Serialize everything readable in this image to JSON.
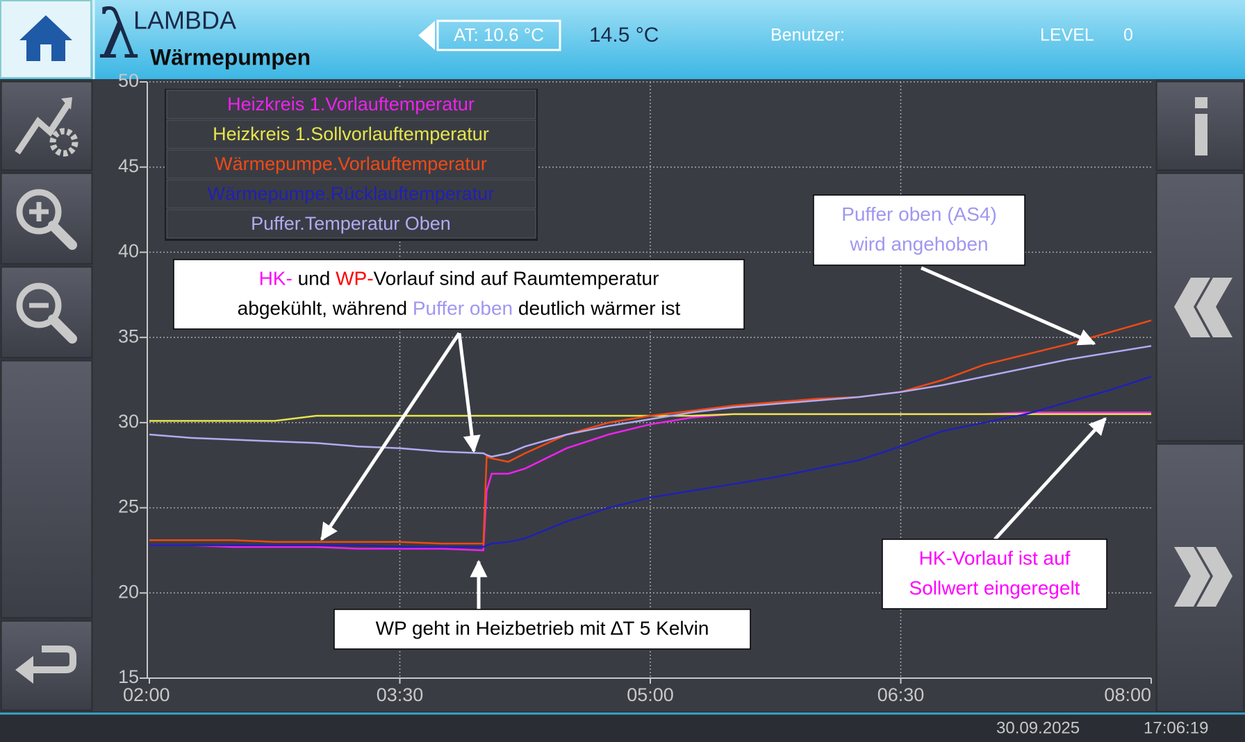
{
  "header": {
    "logo_symbol": "λ",
    "logo_title": "LAMBDA",
    "logo_subtitle": "Wärmepumpen",
    "outdoor_temp": "AT: 10.6 °C",
    "room_temp": "14.5 °C",
    "user_label": "Benutzer:",
    "level_label": "LEVEL",
    "level_value": "0"
  },
  "chart_data": {
    "type": "line",
    "legend": "upper left",
    "grid": true,
    "x": [
      2,
      2.25,
      2.5,
      2.75,
      3,
      3.25,
      3.5,
      3.75,
      4,
      4.02,
      4.05,
      4.15,
      4.25,
      4.5,
      4.75,
      5,
      5.25,
      5.5,
      5.75,
      6,
      6.25,
      6.5,
      6.75,
      7,
      7.25,
      7.5,
      7.75,
      8
    ],
    "xlim": [
      2,
      8
    ],
    "xticks": [
      {
        "value": 2,
        "label": "02:00"
      },
      {
        "value": 3.5,
        "label": "03:30"
      },
      {
        "value": 5,
        "label": "05:00"
      },
      {
        "value": 6.5,
        "label": "06:30"
      },
      {
        "value": 8,
        "label": "08:00"
      }
    ],
    "ylim": [
      15,
      50
    ],
    "yticks": [
      15,
      20,
      25,
      30,
      35,
      40,
      45,
      50
    ],
    "series": [
      {
        "name": "Heizkreis 1.Vorlauftemperatur",
        "color": "#ee22ee",
        "values": [
          22.8,
          22.8,
          22.7,
          22.7,
          22.7,
          22.6,
          22.6,
          22.6,
          22.5,
          26,
          27,
          27,
          27.3,
          28.5,
          29.3,
          29.9,
          30.3,
          30.5,
          30.5,
          30.5,
          30.5,
          30.5,
          30.5,
          30.5,
          30.6,
          30.6,
          30.6,
          30.6
        ]
      },
      {
        "name": "Heizkreis 1.Sollvorlauftemperatur",
        "color": "#e6e64a",
        "values": [
          30.1,
          30.1,
          30.1,
          30.1,
          30.4,
          30.4,
          30.4,
          30.4,
          30.4,
          30.4,
          30.4,
          30.4,
          30.4,
          30.4,
          30.4,
          30.4,
          30.4,
          30.5,
          30.5,
          30.5,
          30.5,
          30.5,
          30.5,
          30.5,
          30.5,
          30.5,
          30.5,
          30.5
        ]
      },
      {
        "name": "Wärmepumpe.Vorlauftemperatur",
        "color": "#f04a14",
        "values": [
          23.1,
          23.1,
          23.1,
          23,
          23,
          23,
          23,
          22.9,
          22.9,
          28,
          27.9,
          27.7,
          28.2,
          29.3,
          30,
          30.4,
          30.7,
          31,
          31.2,
          31.4,
          31.5,
          31.8,
          32.5,
          33.4,
          34,
          34.6,
          35.3,
          36
        ]
      },
      {
        "name": "Wärmepumpe.Rücklauftemperatur",
        "color": "#2020b4",
        "values": [
          22.8,
          22.8,
          22.8,
          22.8,
          22.8,
          22.8,
          22.7,
          22.7,
          22.7,
          22.8,
          22.9,
          23,
          23.2,
          24.2,
          25,
          25.6,
          26,
          26.4,
          26.8,
          27.3,
          27.8,
          28.6,
          29.5,
          30,
          30.5,
          31.2,
          31.9,
          32.7
        ]
      },
      {
        "name": "Puffer.Temperatur Oben",
        "color": "#b4aaf0",
        "values": [
          29.3,
          29.1,
          29,
          28.9,
          28.8,
          28.6,
          28.5,
          28.3,
          28.2,
          28.1,
          28,
          28.2,
          28.6,
          29.3,
          29.8,
          30.2,
          30.6,
          30.9,
          31.1,
          31.3,
          31.5,
          31.8,
          32.2,
          32.7,
          33.2,
          33.7,
          34.1,
          34.5
        ]
      }
    ],
    "annotations": [
      {
        "lines": [
          [
            {
              "text": "HK-",
              "color": "#ff00ff"
            },
            {
              "text": " und ",
              "color": "#000000"
            },
            {
              "text": "WP-",
              "color": "#ff0000"
            },
            {
              "text": "Vorlauf sind auf Raumtemperatur",
              "color": "#000000"
            }
          ],
          [
            {
              "text": "abgekühlt, während ",
              "color": "#000000"
            },
            {
              "text": "Puffer oben",
              "color": "#9f97f0"
            },
            {
              "text": " deutlich wärmer ist",
              "color": "#000000"
            }
          ]
        ]
      },
      {
        "lines": [
          [
            {
              "text": "WP geht in Heizbetrieb mit ∆T 5 Kelvin",
              "color": "#000000"
            }
          ]
        ]
      },
      {
        "lines": [
          [
            {
              "text": "Puffer oben (AS4)",
              "color": "#9f97f0"
            }
          ],
          [
            {
              "text": "wird angehoben",
              "color": "#9f97f0"
            }
          ]
        ]
      },
      {
        "lines": [
          [
            {
              "text": "HK-Vorlauf ist auf",
              "color": "#ff00ff"
            }
          ],
          [
            {
              "text": "Sollwert eingeregelt",
              "color": "#ff00ff"
            }
          ]
        ]
      }
    ]
  },
  "footer": {
    "date": "30.09.2025",
    "time": "17:06:19"
  }
}
